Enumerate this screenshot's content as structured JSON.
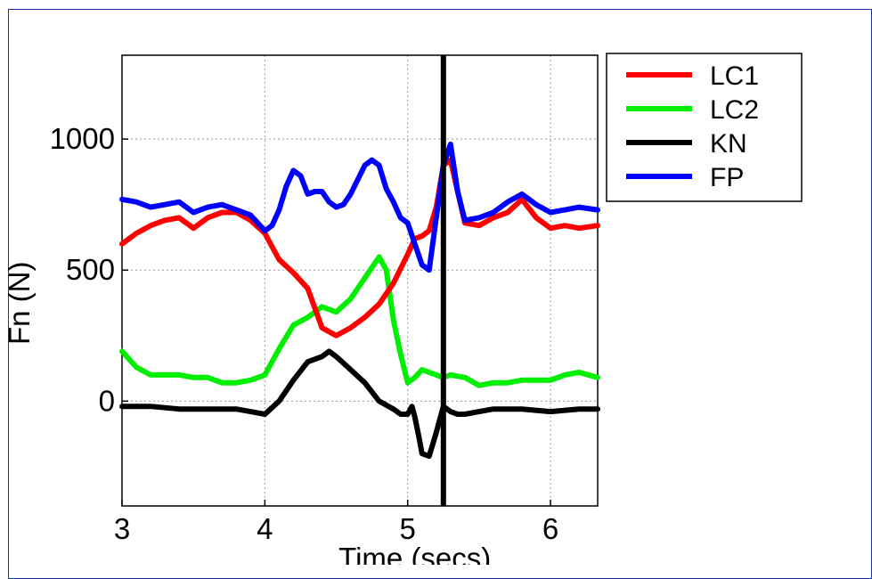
{
  "chart_data": {
    "type": "line",
    "xlabel": "Time (secs)",
    "ylabel": "Fn (N)",
    "xlim": [
      3,
      6.33
    ],
    "ylim": [
      -400,
      1320
    ],
    "xticks": [
      3,
      4,
      5,
      6
    ],
    "yticks": [
      0,
      500,
      1000
    ],
    "grid": true,
    "legend_position": "top-right outside",
    "vline": {
      "x": 5.25,
      "color": "#000000"
    },
    "series": [
      {
        "name": "LC1",
        "color": "#ff0000",
        "x": [
          3.0,
          3.1,
          3.2,
          3.3,
          3.4,
          3.5,
          3.6,
          3.7,
          3.8,
          3.9,
          4.0,
          4.1,
          4.2,
          4.3,
          4.4,
          4.5,
          4.6,
          4.7,
          4.8,
          4.9,
          5.0,
          5.05,
          5.1,
          5.15,
          5.2,
          5.25,
          5.3,
          5.35,
          5.4,
          5.5,
          5.6,
          5.7,
          5.8,
          5.9,
          6.0,
          6.1,
          6.2,
          6.33
        ],
        "y": [
          600,
          640,
          670,
          690,
          700,
          660,
          700,
          720,
          720,
          690,
          640,
          540,
          490,
          430,
          280,
          250,
          280,
          320,
          370,
          450,
          560,
          620,
          630,
          650,
          740,
          900,
          920,
          800,
          680,
          670,
          700,
          720,
          770,
          700,
          660,
          670,
          660,
          670
        ]
      },
      {
        "name": "LC2",
        "color": "#00ee00",
        "x": [
          3.0,
          3.1,
          3.2,
          3.3,
          3.4,
          3.5,
          3.6,
          3.7,
          3.8,
          3.9,
          4.0,
          4.1,
          4.2,
          4.3,
          4.4,
          4.5,
          4.6,
          4.7,
          4.8,
          4.85,
          4.9,
          4.95,
          5.0,
          5.05,
          5.1,
          5.15,
          5.2,
          5.25,
          5.3,
          5.4,
          5.5,
          5.6,
          5.7,
          5.8,
          5.9,
          6.0,
          6.1,
          6.2,
          6.33
        ],
        "y": [
          190,
          130,
          100,
          100,
          100,
          90,
          90,
          70,
          70,
          80,
          100,
          200,
          290,
          320,
          360,
          340,
          390,
          470,
          550,
          500,
          310,
          180,
          70,
          90,
          120,
          110,
          100,
          90,
          100,
          90,
          60,
          70,
          70,
          80,
          80,
          80,
          100,
          110,
          90
        ]
      },
      {
        "name": "KN",
        "color": "#000000",
        "x": [
          3.0,
          3.2,
          3.4,
          3.6,
          3.8,
          3.9,
          4.0,
          4.1,
          4.2,
          4.3,
          4.4,
          4.45,
          4.5,
          4.6,
          4.7,
          4.8,
          4.9,
          4.95,
          5.0,
          5.03,
          5.05,
          5.08,
          5.1,
          5.15,
          5.2,
          5.25,
          5.3,
          5.35,
          5.4,
          5.5,
          5.6,
          5.8,
          6.0,
          6.2,
          6.33
        ],
        "y": [
          -20,
          -20,
          -30,
          -30,
          -30,
          -40,
          -50,
          0,
          80,
          150,
          170,
          190,
          170,
          120,
          70,
          0,
          -30,
          -50,
          -50,
          -20,
          -60,
          -140,
          -200,
          -210,
          -120,
          -20,
          -40,
          -50,
          -50,
          -40,
          -30,
          -30,
          -40,
          -30,
          -30
        ]
      },
      {
        "name": "FP",
        "color": "#0000ff",
        "x": [
          3.0,
          3.1,
          3.2,
          3.3,
          3.4,
          3.5,
          3.6,
          3.7,
          3.8,
          3.9,
          4.0,
          4.05,
          4.1,
          4.15,
          4.2,
          4.25,
          4.3,
          4.35,
          4.4,
          4.45,
          4.5,
          4.55,
          4.6,
          4.7,
          4.75,
          4.8,
          4.85,
          4.9,
          4.95,
          5.0,
          5.05,
          5.1,
          5.15,
          5.2,
          5.25,
          5.3,
          5.35,
          5.4,
          5.5,
          5.6,
          5.7,
          5.8,
          5.9,
          6.0,
          6.1,
          6.2,
          6.33
        ],
        "y": [
          770,
          760,
          740,
          750,
          760,
          720,
          740,
          750,
          730,
          710,
          650,
          670,
          730,
          820,
          880,
          860,
          790,
          800,
          800,
          760,
          740,
          750,
          790,
          900,
          920,
          900,
          810,
          760,
          700,
          680,
          600,
          520,
          500,
          700,
          900,
          980,
          800,
          690,
          700,
          720,
          760,
          790,
          750,
          720,
          730,
          740,
          730
        ]
      }
    ]
  }
}
